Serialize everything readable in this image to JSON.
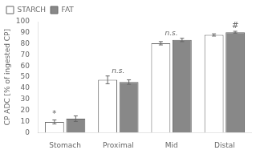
{
  "chart_data": {
    "type": "bar",
    "categories": [
      "Stomach",
      "Proximal",
      "Mid",
      "Distal"
    ],
    "series": [
      {
        "name": "STARCH",
        "color": "#ffffff",
        "values": [
          9.5,
          47.5,
          80.5,
          88.0
        ],
        "errors": [
          1.8,
          3.5,
          1.5,
          1.0
        ]
      },
      {
        "name": "FAT",
        "color": "#888888",
        "values": [
          12.5,
          45.5,
          83.5,
          90.5
        ],
        "errors": [
          2.5,
          2.0,
          1.5,
          0.8
        ]
      }
    ],
    "ylabel": "CP ADC [% of ingested CP]",
    "ylim": [
      0,
      100
    ],
    "yticks": [
      0,
      10,
      20,
      30,
      40,
      50,
      60,
      70,
      80,
      90,
      100
    ],
    "grid": false,
    "legend": "upper left",
    "annotations": [
      {
        "text": "*",
        "category": "Stomach",
        "series": "STARCH"
      },
      {
        "text": "n.s.",
        "category": "Proximal"
      },
      {
        "text": "n.s.",
        "category": "Mid"
      },
      {
        "text": "#",
        "category": "Distal",
        "series": "FAT"
      }
    ]
  }
}
